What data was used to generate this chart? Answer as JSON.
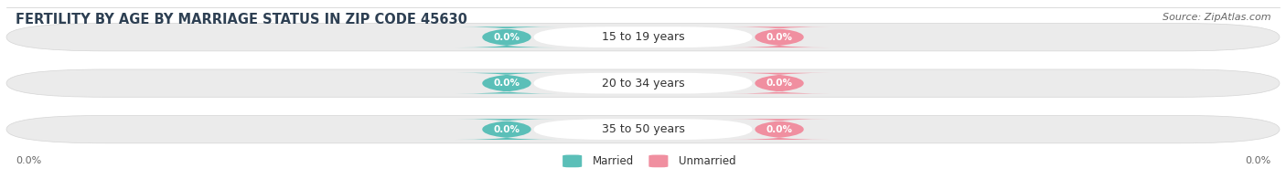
{
  "title": "FERTILITY BY AGE BY MARRIAGE STATUS IN ZIP CODE 45630",
  "source": "Source: ZipAtlas.com",
  "categories": [
    "15 to 19 years",
    "20 to 34 years",
    "35 to 50 years"
  ],
  "married_values": [
    "0.0%",
    "0.0%",
    "0.0%"
  ],
  "unmarried_values": [
    "0.0%",
    "0.0%",
    "0.0%"
  ],
  "married_color": "#5BBFB8",
  "unmarried_color": "#F08FA0",
  "bar_bg_color": "#EBEBEB",
  "center_label_color": "#FFFFFF",
  "title_fontsize": 10.5,
  "source_fontsize": 8,
  "badge_fontsize": 7.5,
  "category_fontsize": 9,
  "legend_fontsize": 8.5,
  "axis_label_fontsize": 8,
  "left_axis_label": "0.0%",
  "right_axis_label": "0.0%",
  "background_color": "#ffffff",
  "title_color": "#2E4053",
  "source_color": "#666666",
  "axis_label_color": "#666666",
  "legend_label_color": "#333333",
  "category_text_color": "#333333"
}
